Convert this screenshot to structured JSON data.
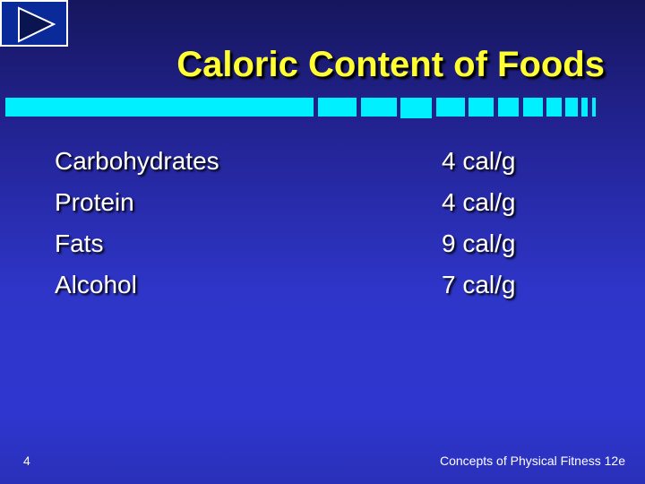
{
  "title": "Caloric Content of Foods",
  "foods": [
    {
      "name": "Carbohydrates",
      "value": "4 cal/g"
    },
    {
      "name": "Protein",
      "value": "4 cal/g"
    },
    {
      "name": "Fats",
      "value": "9 cal/g"
    },
    {
      "name": "Alcohol",
      "value": "7 cal/g"
    }
  ],
  "page_number": "4",
  "footer": "Concepts of Physical Fitness 12e",
  "colors": {
    "title": "#ffff33",
    "accent_bar": "#00f0ff"
  }
}
